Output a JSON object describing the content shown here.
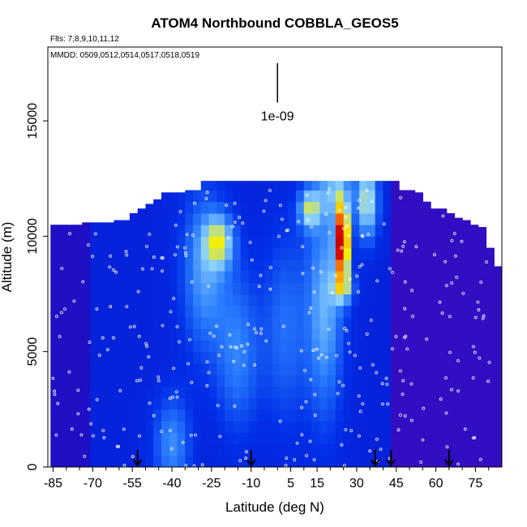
{
  "chart_data": {
    "type": "heatmap",
    "title": "ATOM4 Northbound COBBLA_GEOS5",
    "flights_note": "Flts: 7,8,9,10,11,12",
    "dates_note": "MMDD: 0509,0512,0514,0517,0518,0519",
    "xlabel": "Latitude (deg N)",
    "ylabel": "Altitude (m)",
    "xlim": [
      -87,
      85
    ],
    "ylim": [
      0,
      18200
    ],
    "x_ticks": [
      -85,
      -70,
      -55,
      -40,
      -25,
      -10,
      5,
      15,
      30,
      45,
      60,
      75
    ],
    "x_tick_labels": [
      "-85",
      "-70",
      "-55",
      "-40",
      "-25",
      "-10",
      "5",
      "15",
      "30",
      "45",
      "60",
      "75"
    ],
    "x_minor_ticks": [
      -80,
      -75,
      -65,
      -60,
      -50,
      -45,
      -35,
      -30,
      -20,
      -15,
      -5,
      0,
      10,
      20,
      25,
      35,
      40,
      50,
      55,
      65,
      70,
      80
    ],
    "y_ticks": [
      0,
      5000,
      10000,
      15000
    ],
    "y_tick_labels": [
      "0",
      "5000",
      "10000",
      "15000"
    ],
    "scale_bar": {
      "value": 1e-09,
      "label": "1e-09",
      "x": 0,
      "y_bottom": 15800,
      "y_top": 17500
    },
    "arrow_latitudes": [
      -53,
      -10,
      37,
      43,
      65
    ],
    "grid": false,
    "legend": "none",
    "color_scale": [
      "#3a0cc0",
      "#1010c8",
      "#0030e8",
      "#2a7cff",
      "#8ad0ff",
      "#f4f000",
      "#ff9000",
      "#e01000",
      "#c00000"
    ],
    "envelope": [
      [
        -86,
        0,
        10500
      ],
      [
        -83,
        0,
        10500
      ],
      [
        -80,
        0,
        10500
      ],
      [
        -77,
        0,
        10500
      ],
      [
        -74,
        0,
        10600
      ],
      [
        -71,
        0,
        10600
      ],
      [
        -68,
        0,
        10600
      ],
      [
        -65,
        0,
        10600
      ],
      [
        -62,
        0,
        10700
      ],
      [
        -59,
        0,
        10700
      ],
      [
        -56,
        0,
        11000
      ],
      [
        -53,
        0,
        11200
      ],
      [
        -50,
        0,
        11400
      ],
      [
        -47,
        0,
        11600
      ],
      [
        -44,
        0,
        11900
      ],
      [
        -41,
        0,
        11900
      ],
      [
        -38,
        0,
        11900
      ],
      [
        -35,
        0,
        12000
      ],
      [
        -32,
        0,
        12000
      ],
      [
        -29,
        0,
        12400
      ],
      [
        -26,
        0,
        12400
      ],
      [
        -23,
        0,
        12400
      ],
      [
        -20,
        0,
        12400
      ],
      [
        -17,
        0,
        12400
      ],
      [
        -14,
        0,
        12400
      ],
      [
        -11,
        0,
        12400
      ],
      [
        -8,
        0,
        12400
      ],
      [
        -5,
        0,
        12400
      ],
      [
        -2,
        0,
        12400
      ],
      [
        1,
        0,
        12400
      ],
      [
        4,
        0,
        12400
      ],
      [
        7,
        0,
        12400
      ],
      [
        10,
        0,
        12400
      ],
      [
        13,
        0,
        12400
      ],
      [
        16,
        0,
        12400
      ],
      [
        19,
        0,
        12400
      ],
      [
        22,
        0,
        12400
      ],
      [
        25,
        0,
        12400
      ],
      [
        28,
        0,
        12400
      ],
      [
        31,
        0,
        12400
      ],
      [
        34,
        0,
        12400
      ],
      [
        37,
        0,
        12400
      ],
      [
        40,
        0,
        12400
      ],
      [
        43,
        0,
        12400
      ],
      [
        46,
        0,
        12000
      ],
      [
        49,
        0,
        12000
      ],
      [
        52,
        0,
        11900
      ],
      [
        55,
        0,
        11500
      ],
      [
        58,
        0,
        11200
      ],
      [
        61,
        0,
        11200
      ],
      [
        64,
        0,
        11000
      ],
      [
        67,
        0,
        10800
      ],
      [
        70,
        0,
        10700
      ],
      [
        73,
        0,
        10500
      ],
      [
        76,
        0,
        10400
      ],
      [
        79,
        0,
        9500
      ],
      [
        82,
        0,
        8700
      ]
    ]
  }
}
